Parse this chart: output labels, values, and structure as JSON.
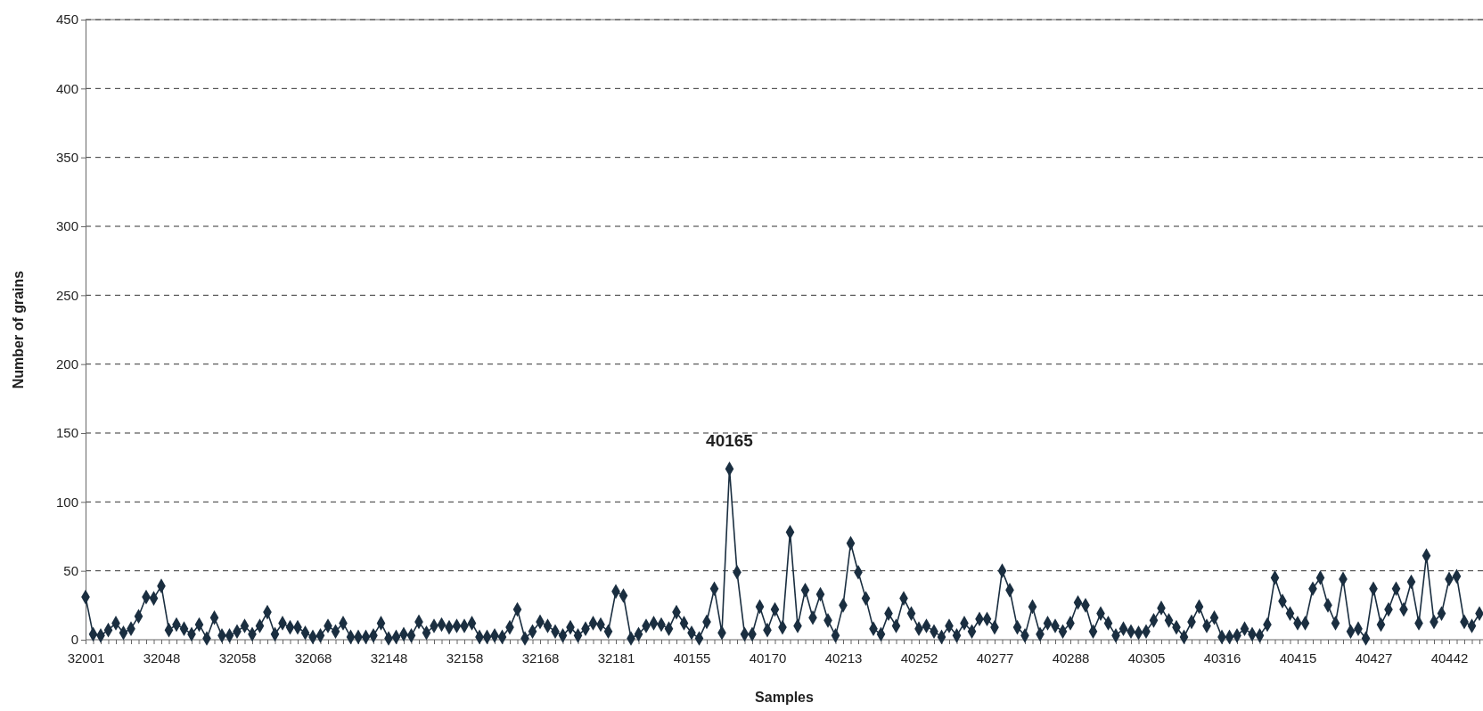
{
  "chart_data": {
    "type": "line",
    "xlabel": "Samples",
    "ylabel": "Number of grains",
    "categories": [
      "32001",
      null,
      null,
      null,
      null,
      null,
      null,
      null,
      null,
      null,
      "32048",
      null,
      null,
      null,
      null,
      null,
      null,
      null,
      null,
      null,
      "32058",
      null,
      null,
      null,
      null,
      null,
      null,
      null,
      null,
      null,
      "32068",
      null,
      null,
      null,
      null,
      null,
      null,
      null,
      null,
      null,
      "32148",
      null,
      null,
      null,
      null,
      null,
      null,
      null,
      null,
      null,
      "32158",
      null,
      null,
      null,
      null,
      null,
      null,
      null,
      null,
      null,
      "32168",
      null,
      null,
      null,
      null,
      null,
      null,
      null,
      null,
      null,
      "32181",
      null,
      null,
      null,
      null,
      null,
      null,
      null,
      null,
      null,
      "40155",
      null,
      null,
      null,
      null,
      null,
      null,
      null,
      null,
      null,
      "40170",
      null,
      null,
      null,
      null,
      null,
      null,
      null,
      null,
      null,
      "40213",
      null,
      null,
      null,
      null,
      null,
      null,
      null,
      null,
      null,
      "40252",
      null,
      null,
      null,
      null,
      null,
      null,
      null,
      null,
      null,
      "40277",
      null,
      null,
      null,
      null,
      null,
      null,
      null,
      null,
      null,
      "40288",
      null,
      null,
      null,
      null,
      null,
      null,
      null,
      null,
      null,
      "40305",
      null,
      null,
      null,
      null,
      null,
      null,
      null,
      null,
      null,
      "40316",
      null,
      null,
      null,
      null,
      null,
      null,
      null,
      null,
      null,
      "40415",
      null,
      null,
      null,
      null,
      null,
      null,
      null,
      null,
      null,
      "40427",
      null,
      null,
      null,
      null,
      null,
      null,
      null,
      null,
      null,
      "40442",
      null,
      null,
      null,
      null
    ],
    "series": [
      {
        "color": "#1a2e40",
        "values": [
          31,
          4,
          3,
          7,
          12,
          5,
          8,
          17,
          31,
          30,
          39,
          7,
          11,
          8,
          4,
          11,
          1,
          16,
          3,
          3,
          6,
          10,
          4,
          10,
          20,
          4,
          12,
          9,
          9,
          5,
          2,
          3,
          10,
          6,
          12,
          2,
          2,
          2,
          3,
          12,
          1,
          2,
          4,
          3,
          13,
          5,
          10,
          11,
          9,
          10,
          10,
          12,
          2,
          2,
          3,
          2,
          9,
          22,
          1,
          6,
          13,
          10,
          6,
          3,
          9,
          3,
          8,
          12,
          11,
          6,
          35,
          32,
          1,
          4,
          10,
          12,
          11,
          8,
          20,
          12,
          5,
          1,
          13,
          37,
          5,
          124,
          49,
          4,
          4,
          24,
          7,
          22,
          9,
          78,
          10,
          36,
          16,
          33,
          14,
          3,
          25,
          70,
          49,
          30,
          8,
          4,
          19,
          10,
          30,
          19,
          8,
          10,
          6,
          2,
          10,
          3,
          12,
          6,
          15,
          15,
          9,
          50,
          36,
          9,
          3,
          24,
          4,
          12,
          10,
          6,
          12,
          27,
          25,
          6,
          19,
          12,
          3,
          8,
          6,
          5,
          6,
          14,
          23,
          14,
          9,
          2,
          13,
          24,
          10,
          16,
          2,
          2,
          3,
          8,
          4,
          3,
          11,
          45,
          28,
          19,
          12,
          12,
          37,
          45,
          25,
          12,
          44,
          6,
          8,
          1,
          37,
          11,
          22,
          37,
          22,
          42,
          12,
          61,
          13,
          19,
          44,
          46,
          13,
          10,
          19
        ]
      }
    ],
    "ylim": [
      0,
      450
    ],
    "yticks": [
      0,
      50,
      100,
      150,
      200,
      250,
      300,
      350,
      400,
      450
    ],
    "grid": "y",
    "marker": "diamond",
    "line_style": "solid",
    "annotations": [
      {
        "text": "40165",
        "y": 124
      }
    ]
  }
}
